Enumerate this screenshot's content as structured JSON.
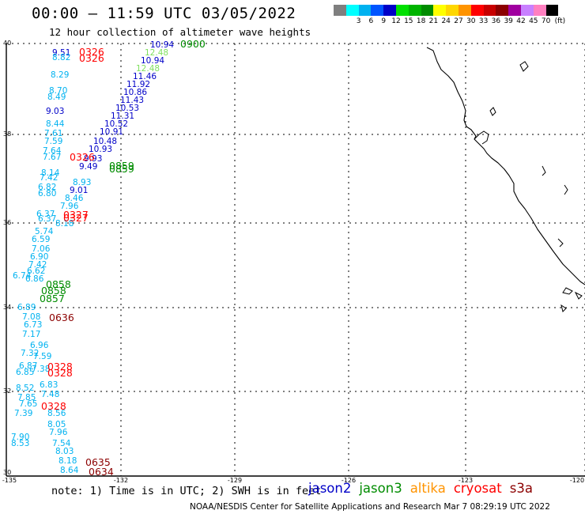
{
  "header": {
    "title": "00:00 – 11:59 UTC 03/05/2022",
    "subtitle": "12 hour collection of altimeter wave heights"
  },
  "legend": {
    "unit": "(ft)",
    "entries": [
      {
        "label": "",
        "color": "#7f7f7f"
      },
      {
        "label": "3",
        "color": "#00ffff"
      },
      {
        "label": "6",
        "color": "#00b2f0"
      },
      {
        "label": "9",
        "color": "#0055ff"
      },
      {
        "label": "12",
        "color": "#0000c8"
      },
      {
        "label": "15",
        "color": "#00e000"
      },
      {
        "label": "18",
        "color": "#00b400"
      },
      {
        "label": "21",
        "color": "#008c00"
      },
      {
        "label": "24",
        "color": "#ffff00"
      },
      {
        "label": "27",
        "color": "#ffd700"
      },
      {
        "label": "30",
        "color": "#ff9400"
      },
      {
        "label": "33",
        "color": "#ff0000"
      },
      {
        "label": "36",
        "color": "#c80000"
      },
      {
        "label": "39",
        "color": "#8c0000"
      },
      {
        "label": "42",
        "color": "#a000a0"
      },
      {
        "label": "45",
        "color": "#c880ff"
      },
      {
        "label": "70",
        "color": "#ff80c0"
      },
      {
        "label": "",
        "color": "#000000"
      }
    ]
  },
  "axes": {
    "lat_labels": [
      "40",
      "38",
      "36",
      "34",
      "32",
      "30"
    ],
    "lon_labels": [
      "-135",
      "-132",
      "-129",
      "-126",
      "-123",
      "-120"
    ]
  },
  "time_labels": [
    {
      "text": "0900",
      "color": "#008c00"
    },
    {
      "text": "0326",
      "color": "#ff0000"
    },
    {
      "text": "0326",
      "color": "#ff0000"
    },
    {
      "text": "0326",
      "color": "#ff0000"
    },
    {
      "text": "0859",
      "color": "#008c00"
    },
    {
      "text": "0859",
      "color": "#008c00"
    },
    {
      "text": "0327",
      "color": "#ff0000"
    },
    {
      "text": "0327",
      "color": "#ff0000"
    },
    {
      "text": "0858",
      "color": "#008c00"
    },
    {
      "text": "0858",
      "color": "#008c00"
    },
    {
      "text": "0857",
      "color": "#008c00"
    },
    {
      "text": "0636",
      "color": "#8c0000"
    },
    {
      "text": "0328",
      "color": "#ff0000"
    },
    {
      "text": "0328",
      "color": "#ff0000"
    },
    {
      "text": "0328",
      "color": "#ff0000"
    },
    {
      "text": "0635",
      "color": "#8c0000"
    },
    {
      "text": "0634",
      "color": "#8c0000"
    }
  ],
  "wave_heights": [
    {
      "text": "10.94",
      "color": "#0000c8"
    },
    {
      "text": "12.48",
      "color": "#80e060"
    },
    {
      "text": "10.94",
      "color": "#0000c8"
    },
    {
      "text": "12.48",
      "color": "#80e060"
    },
    {
      "text": "11.46",
      "color": "#0000c8"
    },
    {
      "text": "11.92",
      "color": "#0000c8"
    },
    {
      "text": "10.86",
      "color": "#0000c8"
    },
    {
      "text": "11.43",
      "color": "#0000c8"
    },
    {
      "text": "10.53",
      "color": "#0000c8"
    },
    {
      "text": "11.31",
      "color": "#0000c8"
    },
    {
      "text": "10.52",
      "color": "#0000c8"
    },
    {
      "text": "10.91",
      "color": "#0000c8"
    },
    {
      "text": "10.48",
      "color": "#0000c8"
    },
    {
      "text": "10.93",
      "color": "#0000c8"
    },
    {
      "text": "9.93",
      "color": "#0000c8"
    },
    {
      "text": "9.49",
      "color": "#0000c8"
    },
    {
      "text": "8.93",
      "color": "#00b2f0"
    },
    {
      "text": "9.01",
      "color": "#0000c8"
    },
    {
      "text": "8.46",
      "color": "#00b2f0"
    },
    {
      "text": "7.96",
      "color": "#00b2f0"
    },
    {
      "text": "8.18",
      "color": "#00b2f0"
    },
    {
      "text": "9.51",
      "color": "#0000c8"
    },
    {
      "text": "8.82",
      "color": "#00b2f0"
    },
    {
      "text": "8.29",
      "color": "#00b2f0"
    },
    {
      "text": "8.70",
      "color": "#00b2f0"
    },
    {
      "text": "8.49",
      "color": "#00b2f0"
    },
    {
      "text": "9.03",
      "color": "#0000c8"
    },
    {
      "text": "8.44",
      "color": "#00b2f0"
    },
    {
      "text": "7.61",
      "color": "#00b2f0"
    },
    {
      "text": "7.59",
      "color": "#00b2f0"
    },
    {
      "text": "7.64",
      "color": "#00b2f0"
    },
    {
      "text": "7.67",
      "color": "#00b2f0"
    },
    {
      "text": "8.14",
      "color": "#00b2f0"
    },
    {
      "text": "7.42",
      "color": "#00b2f0"
    },
    {
      "text": "6.82",
      "color": "#00b2f0"
    },
    {
      "text": "6.80",
      "color": "#00b2f0"
    },
    {
      "text": "6.37",
      "color": "#00b2f0"
    },
    {
      "text": "6.37",
      "color": "#00b2f0"
    },
    {
      "text": "5.74",
      "color": "#00b2f0"
    },
    {
      "text": "6.59",
      "color": "#00b2f0"
    },
    {
      "text": "7.06",
      "color": "#00b2f0"
    },
    {
      "text": "6.90",
      "color": "#00b2f0"
    },
    {
      "text": "7.42",
      "color": "#00b2f0"
    },
    {
      "text": "6.62",
      "color": "#00b2f0"
    },
    {
      "text": "6.86",
      "color": "#00b2f0"
    },
    {
      "text": "6.74",
      "color": "#00b2f0"
    },
    {
      "text": "6.89",
      "color": "#00b2f0"
    },
    {
      "text": "7.08",
      "color": "#00b2f0"
    },
    {
      "text": "6.73",
      "color": "#00b2f0"
    },
    {
      "text": "7.17",
      "color": "#00b2f0"
    },
    {
      "text": "6.96",
      "color": "#00b2f0"
    },
    {
      "text": "7.32",
      "color": "#00b2f0"
    },
    {
      "text": "7.59",
      "color": "#00b2f0"
    },
    {
      "text": "6.87",
      "color": "#00b2f0"
    },
    {
      "text": "6.85",
      "color": "#00b2f0"
    },
    {
      "text": "7.38",
      "color": "#00b2f0"
    },
    {
      "text": "8.52",
      "color": "#00b2f0"
    },
    {
      "text": "6.83",
      "color": "#00b2f0"
    },
    {
      "text": "7.48",
      "color": "#00b2f0"
    },
    {
      "text": "7.85",
      "color": "#00b2f0"
    },
    {
      "text": "7.65",
      "color": "#00b2f0"
    },
    {
      "text": "7.39",
      "color": "#00b2f0"
    },
    {
      "text": "8.56",
      "color": "#00b2f0"
    },
    {
      "text": "8.05",
      "color": "#00b2f0"
    },
    {
      "text": "7.96",
      "color": "#00b2f0"
    },
    {
      "text": "7.90",
      "color": "#00b2f0"
    },
    {
      "text": "8.53",
      "color": "#00b2f0"
    },
    {
      "text": "7.54",
      "color": "#00b2f0"
    },
    {
      "text": "8.03",
      "color": "#00b2f0"
    },
    {
      "text": "8.18",
      "color": "#00b2f0"
    },
    {
      "text": "8.64",
      "color": "#00b2f0"
    }
  ],
  "footer": {
    "note": "note: 1) Time is in UTC; 2) SWH is in feet",
    "satellites": [
      {
        "name": "jason2",
        "color": "#0000c8"
      },
      {
        "name": "jason3",
        "color": "#008c00"
      },
      {
        "name": "altika",
        "color": "#ff9400"
      },
      {
        "name": "cryosat",
        "color": "#ff0000"
      },
      {
        "name": "s3a",
        "color": "#8c0000"
      }
    ],
    "credit": "NOAA/NESDIS Center for Satellite Applications and Research   Mar  7 08:29:19 UTC 2022"
  }
}
